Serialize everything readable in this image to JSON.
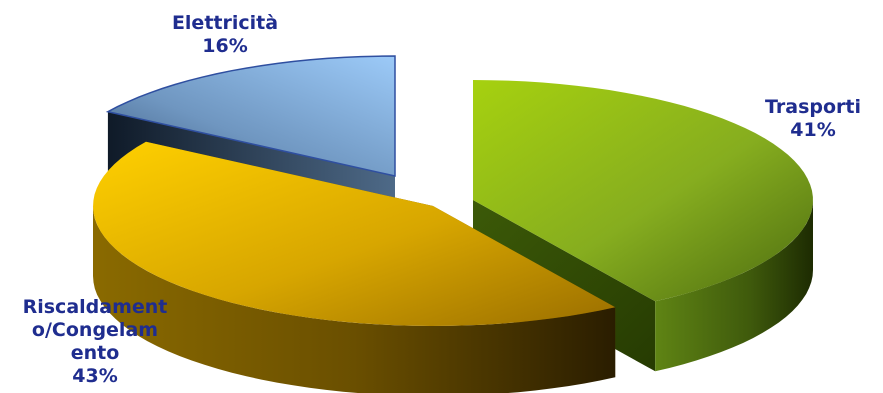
{
  "chart_data": {
    "type": "pie",
    "style": "3d-exploded",
    "legend": "none",
    "slices": [
      {
        "label": "Trasporti",
        "value": 41,
        "value_label": "41%",
        "color": "#8fbc1e"
      },
      {
        "label": "Riscaldamento/Congelamento",
        "label_lines": [
          "Riscaldament",
          "o/Congelam",
          "ento"
        ],
        "value": 43,
        "value_label": "43%",
        "color": "#f2c400"
      },
      {
        "label": "Elettricità",
        "value": 16,
        "value_label": "16%",
        "color": "#86b6ea"
      }
    ]
  }
}
